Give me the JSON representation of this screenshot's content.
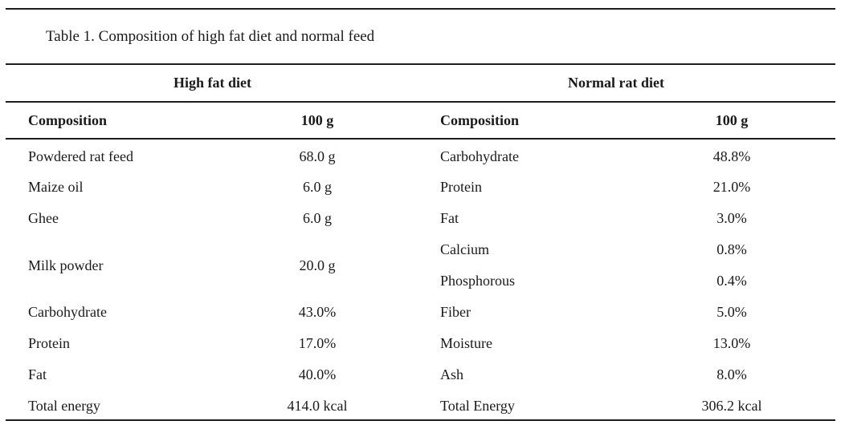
{
  "page": {
    "background": "#ffffff",
    "text_color": "#1a1a1a",
    "rule_color": "#1c1c1c"
  },
  "table": {
    "title": "Table 1. Composition of high fat diet and normal feed",
    "groups": {
      "left": "High fat diet",
      "right": "Normal rat diet"
    },
    "headers": {
      "left_name": "Composition",
      "left_value": "100 g",
      "right_name": "Composition",
      "right_value": "100 g"
    },
    "rows": [
      {
        "left_name": "Powdered rat feed",
        "left_value": "68.0 g",
        "right_name": "Carbohydrate",
        "right_value": "48.8%"
      },
      {
        "left_name": "Maize oil",
        "left_value": "6.0 g",
        "right_name": "Protein",
        "right_value": "21.0%"
      },
      {
        "left_name": "Ghee",
        "left_value": "6.0 g",
        "right_name": "Fat",
        "right_value": "3.0%"
      },
      {
        "left_name": "Milk powder",
        "left_value": "20.0 g",
        "right_name": "Calcium",
        "right_value": "0.8%"
      },
      {
        "right_name": "Phosphorous",
        "right_value": "0.4%"
      },
      {
        "left_name": "Carbohydrate",
        "left_value": "43.0%",
        "right_name": "Fiber",
        "right_value": "5.0%"
      },
      {
        "left_name": "Protein",
        "left_value": "17.0%",
        "right_name": "Moisture",
        "right_value": "13.0%"
      },
      {
        "left_name": "Fat",
        "left_value": "40.0%",
        "right_name": "Ash",
        "right_value": "8.0%"
      },
      {
        "left_name": "Total energy",
        "left_value": "414.0 kcal",
        "right_name": "Total Energy",
        "right_value": "306.2 kcal"
      }
    ]
  },
  "chart_data": {
    "type": "table",
    "title": "Table 1. Composition of high fat diet and normal feed",
    "sections": [
      {
        "name": "High fat diet",
        "columns": [
          "Composition",
          "100 g"
        ],
        "rows": [
          [
            "Powdered rat feed",
            "68.0 g"
          ],
          [
            "Maize oil",
            "6.0 g"
          ],
          [
            "Ghee",
            "6.0 g"
          ],
          [
            "Milk powder",
            "20.0 g"
          ],
          [
            "Carbohydrate",
            "43.0%"
          ],
          [
            "Protein",
            "17.0%"
          ],
          [
            "Fat",
            "40.0%"
          ],
          [
            "Total energy",
            "414.0 kcal"
          ]
        ]
      },
      {
        "name": "Normal rat diet",
        "columns": [
          "Composition",
          "100 g"
        ],
        "rows": [
          [
            "Carbohydrate",
            "48.8%"
          ],
          [
            "Protein",
            "21.0%"
          ],
          [
            "Fat",
            "3.0%"
          ],
          [
            "Calcium",
            "0.8%"
          ],
          [
            "Phosphorous",
            "0.4%"
          ],
          [
            "Fiber",
            "5.0%"
          ],
          [
            "Moisture",
            "13.0%"
          ],
          [
            "Ash",
            "8.0%"
          ],
          [
            "Total Energy",
            "306.2 kcal"
          ]
        ]
      }
    ]
  }
}
